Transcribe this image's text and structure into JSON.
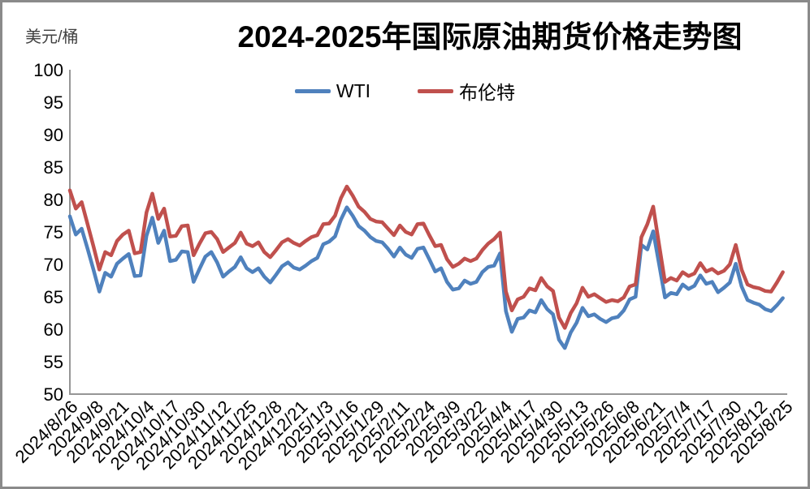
{
  "title": "2024-2025年国际原油期货价格走势图",
  "y_axis_unit": "美元/桶",
  "chart_data": {
    "type": "line",
    "title": "2024-2025年国际原油期货价格走势图",
    "ylabel": "美元/桶",
    "xlabel": "",
    "ylim": [
      50,
      100
    ],
    "y_ticks": [
      50,
      55,
      60,
      65,
      70,
      75,
      80,
      85,
      90,
      95,
      100
    ],
    "grid": false,
    "legend_position": "top-center",
    "axis_color": "#969696",
    "x_range_days": 364,
    "x_tick_interval_days": 13,
    "sample_interval_days": 3,
    "x_tick_labels": [
      "2024/8/26",
      "2024/9/8",
      "2024/9/21",
      "2024/10/4",
      "2024/10/17",
      "2024/10/30",
      "2024/11/12",
      "2024/11/25",
      "2024/12/8",
      "2024/12/21",
      "2025/1/3",
      "2025/1/16",
      "2025/1/29",
      "2025/2/11",
      "2025/2/24",
      "2025/3/9",
      "2025/3/22",
      "2025/4/4",
      "2025/4/17",
      "2025/4/30",
      "2025/5/13",
      "2025/5/26",
      "2025/6/8",
      "2025/6/21",
      "2025/7/4",
      "2025/7/17",
      "2025/7/30",
      "2025/8/12",
      "2025/8/25"
    ],
    "series": [
      {
        "name": "WTI",
        "color": "#4F81BD",
        "values": [
          77.4,
          74.6,
          75.5,
          72.4,
          69.2,
          65.8,
          68.7,
          68.1,
          70.1,
          70.9,
          71.6,
          68.2,
          68.3,
          74.4,
          77.2,
          73.3,
          75.2,
          70.5,
          70.7,
          72.0,
          71.9,
          67.3,
          69.3,
          71.2,
          71.9,
          70.3,
          68.1,
          68.9,
          69.6,
          71.1,
          69.4,
          68.8,
          69.4,
          68.1,
          67.2,
          68.4,
          69.7,
          70.3,
          69.5,
          69.2,
          69.8,
          70.5,
          71.0,
          73.1,
          73.5,
          74.3,
          76.9,
          78.8,
          77.5,
          75.9,
          75.2,
          74.2,
          73.6,
          73.4,
          72.4,
          71.2,
          72.6,
          71.5,
          71.0,
          72.4,
          72.6,
          70.8,
          68.9,
          69.4,
          67.3,
          66.1,
          66.3,
          67.5,
          67.0,
          67.3,
          68.8,
          69.6,
          69.8,
          71.7,
          62.8,
          59.6,
          61.6,
          61.8,
          62.9,
          62.6,
          64.5,
          63.1,
          62.3,
          58.4,
          57.1,
          59.5,
          61.0,
          63.3,
          62.0,
          62.3,
          61.6,
          61.1,
          61.7,
          61.9,
          62.9,
          64.6,
          65.0,
          73.0,
          72.3,
          75.1,
          70.0,
          64.9,
          65.6,
          65.4,
          66.9,
          66.2,
          66.7,
          68.3,
          67.0,
          67.3,
          65.7,
          66.4,
          67.2,
          70.1,
          66.6,
          64.5,
          64.1,
          63.8,
          63.1,
          62.8,
          63.7,
          64.8
        ]
      },
      {
        "name": "布伦特",
        "color": "#C0504D",
        "values": [
          81.4,
          78.6,
          79.6,
          76.2,
          72.8,
          69.2,
          71.9,
          71.4,
          73.6,
          74.6,
          75.2,
          71.7,
          71.9,
          78.0,
          80.9,
          77.0,
          78.6,
          74.3,
          74.4,
          75.9,
          76.0,
          71.4,
          73.2,
          74.8,
          75.0,
          73.9,
          71.9,
          72.6,
          73.3,
          74.9,
          73.2,
          72.8,
          73.4,
          71.9,
          71.1,
          72.2,
          73.4,
          73.9,
          73.3,
          72.9,
          73.6,
          74.2,
          74.5,
          76.2,
          76.3,
          77.5,
          80.2,
          82.0,
          80.6,
          78.9,
          78.1,
          77.0,
          76.6,
          76.5,
          75.5,
          74.5,
          76.0,
          75.0,
          74.6,
          76.2,
          76.3,
          74.5,
          72.8,
          73.0,
          70.8,
          69.6,
          70.1,
          70.9,
          70.5,
          70.9,
          72.2,
          73.2,
          73.9,
          74.9,
          65.8,
          62.9,
          64.6,
          65.0,
          66.3,
          66.0,
          67.9,
          66.6,
          65.9,
          61.8,
          60.2,
          62.5,
          64.0,
          66.4,
          65.0,
          65.4,
          64.8,
          64.2,
          64.5,
          64.3,
          64.9,
          66.6,
          66.9,
          74.2,
          76.2,
          78.9,
          73.0,
          67.3,
          67.9,
          67.5,
          68.8,
          68.2,
          68.6,
          70.2,
          68.9,
          69.3,
          68.6,
          69.0,
          70.0,
          73.0,
          69.2,
          66.9,
          66.5,
          66.3,
          65.9,
          65.8,
          67.2,
          68.8
        ]
      }
    ]
  }
}
